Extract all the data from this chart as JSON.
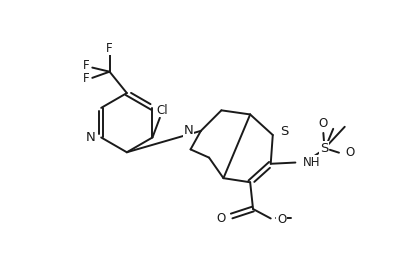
{
  "bg_color": "#ffffff",
  "line_color": "#1a1a1a",
  "line_width": 1.4,
  "font_size": 8.5,
  "figsize": [
    4.14,
    2.7
  ],
  "dpi": 100,
  "xlim": [
    0,
    10
  ],
  "ylim": [
    0,
    6.5
  ]
}
